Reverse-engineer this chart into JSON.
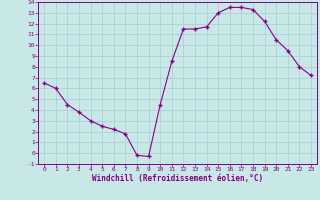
{
  "x": [
    0,
    1,
    2,
    3,
    4,
    5,
    6,
    7,
    8,
    9,
    10,
    11,
    12,
    13,
    14,
    15,
    16,
    17,
    18,
    19,
    20,
    21,
    22,
    23
  ],
  "y": [
    6.5,
    6.0,
    4.5,
    3.8,
    3.0,
    2.5,
    2.2,
    1.8,
    -0.2,
    -0.3,
    4.5,
    8.5,
    11.5,
    11.5,
    11.7,
    13.0,
    13.5,
    13.5,
    13.3,
    12.2,
    10.5,
    9.5,
    8.0,
    7.2
  ],
  "line_color": "#880088",
  "marker": "+",
  "bg_color": "#c8e8e8",
  "grid_color": "#aacccc",
  "xlabel": "Windchill (Refroidissement éolien,°C)",
  "xlabel_color": "#800080",
  "tick_color": "#800080",
  "ylim": [
    -1,
    14
  ],
  "xlim": [
    -0.5,
    23.5
  ],
  "yticks": [
    -1,
    0,
    1,
    2,
    3,
    4,
    5,
    6,
    7,
    8,
    9,
    10,
    11,
    12,
    13,
    14
  ],
  "xticks": [
    0,
    1,
    2,
    3,
    4,
    5,
    6,
    7,
    8,
    9,
    10,
    11,
    12,
    13,
    14,
    15,
    16,
    17,
    18,
    19,
    20,
    21,
    22,
    23
  ]
}
